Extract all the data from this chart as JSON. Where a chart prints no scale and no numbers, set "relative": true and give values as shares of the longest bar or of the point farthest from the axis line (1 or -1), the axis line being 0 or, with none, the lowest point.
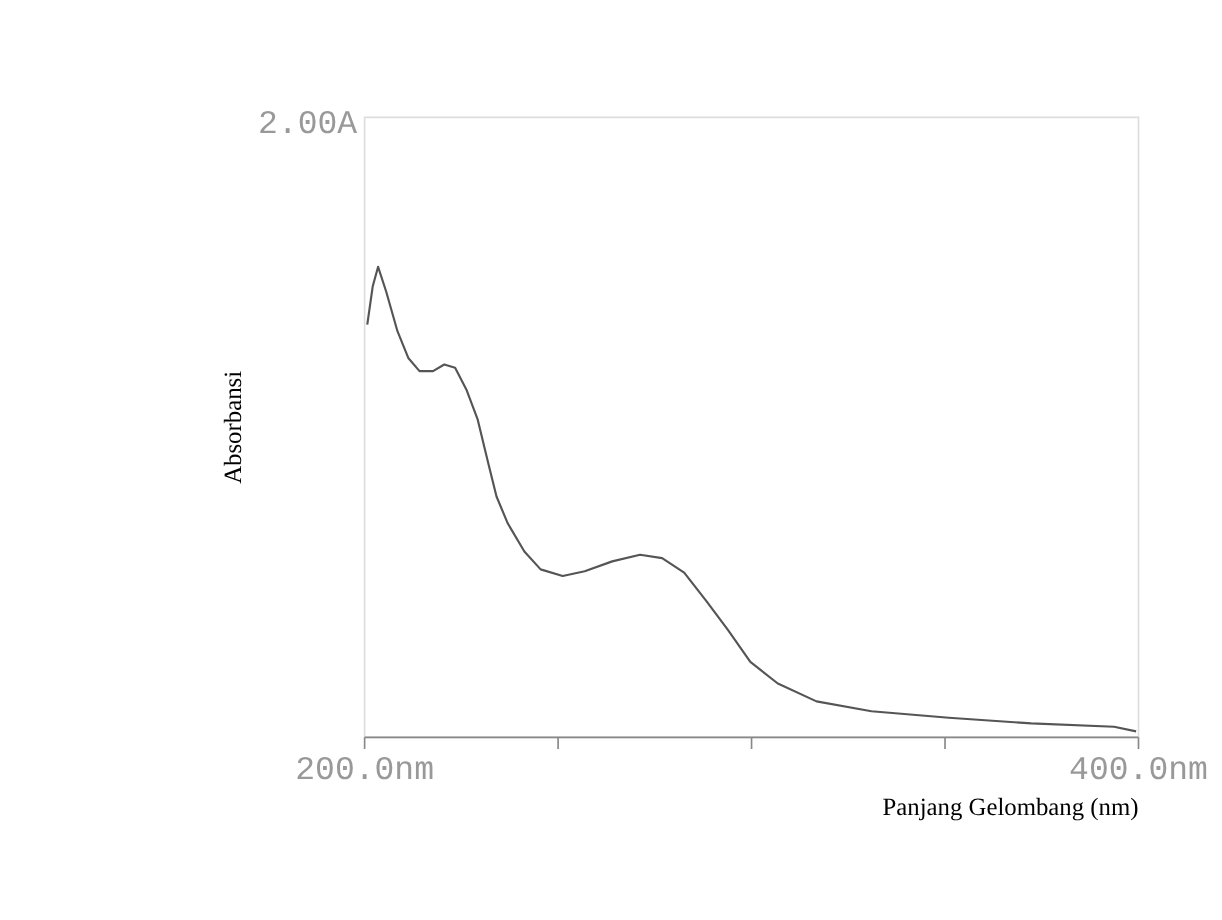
{
  "chart_data": {
    "type": "line",
    "relative": true,
    "xlabel": "Panjang Gelombang (nm)",
    "ylabel": "Absorbansi",
    "annotations": [
      "2.00A"
    ],
    "xlim": [
      200,
      400
    ],
    "xticks": [
      {
        "value": 200,
        "label": "200.0nm"
      },
      {
        "value": 250,
        "label": null
      },
      {
        "value": 300,
        "label": null
      },
      {
        "value": 350,
        "label": null
      },
      {
        "value": 400,
        "label": "400.0nm"
      }
    ],
    "grid": false,
    "marker": "none",
    "line_style": "solid",
    "series": [
      {
        "color": "#555555",
        "x": [
          200.9,
          202.3,
          203.7,
          205.8,
          208.7,
          211.5,
          214.4,
          217.9,
          220.8,
          223.6,
          226.5,
          229.4,
          232.2,
          234.3,
          237.2,
          241.5,
          245.7,
          251.4,
          257.1,
          264.2,
          271.4,
          277.1,
          282.8,
          288.5,
          294.1,
          299.9,
          307.0,
          317.0,
          331.2,
          351.2,
          372.5,
          393.9,
          399.6
        ],
        "values": [
          0.877,
          0.958,
          1.0,
          0.947,
          0.863,
          0.806,
          0.778,
          0.778,
          0.792,
          0.785,
          0.739,
          0.676,
          0.581,
          0.511,
          0.454,
          0.394,
          0.356,
          0.342,
          0.352,
          0.373,
          0.387,
          0.38,
          0.349,
          0.289,
          0.227,
          0.159,
          0.113,
          0.075,
          0.054,
          0.04,
          0.028,
          0.021,
          0.011
        ]
      }
    ]
  }
}
